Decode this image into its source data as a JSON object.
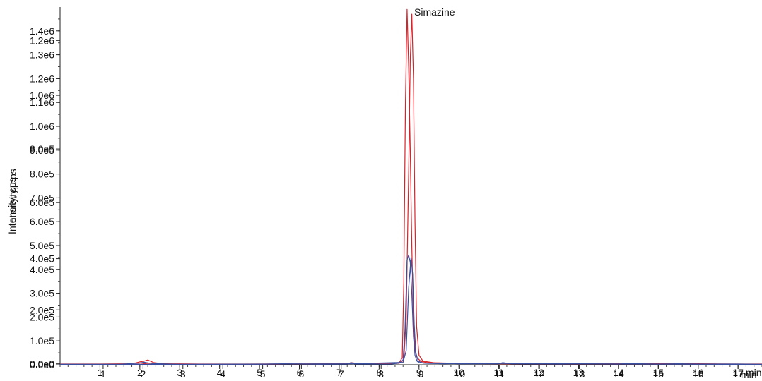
{
  "chart_data": {
    "type": "line",
    "ylabel": "Intensity, cps",
    "ylabel_overlay": "Intensity, cps",
    "xlabel": "min",
    "xlabel_overlay": "min",
    "xlim": [
      0,
      17.6
    ],
    "ylim": [
      0,
      1500000.0
    ],
    "grid": false,
    "x_ticks": [
      {
        "label": "1",
        "value": 1
      },
      {
        "label": "2",
        "value": 2
      },
      {
        "label": "3",
        "value": 3
      },
      {
        "label": "4",
        "value": 4
      },
      {
        "label": "5",
        "value": 5
      },
      {
        "label": "6",
        "value": 6
      },
      {
        "label": "7",
        "value": 7
      },
      {
        "label": "8",
        "value": 8
      },
      {
        "label": "9",
        "value": 9
      },
      {
        "label": "10",
        "value": 10
      },
      {
        "label": "11",
        "value": 11
      },
      {
        "label": "12",
        "value": 12
      },
      {
        "label": "13",
        "value": 13
      },
      {
        "label": "14",
        "value": 14
      },
      {
        "label": "15",
        "value": 15
      },
      {
        "label": "16",
        "value": 16
      },
      {
        "label": "17",
        "value": 17
      }
    ],
    "x_ticks_overlay": [
      {
        "label": "1",
        "value": 1.08
      },
      {
        "label": "2",
        "value": 2.08
      },
      {
        "label": "3",
        "value": 3.08
      },
      {
        "label": "4",
        "value": 4.08
      },
      {
        "label": "5",
        "value": 5.08
      },
      {
        "label": "6",
        "value": 6.05
      },
      {
        "label": "7",
        "value": 7.05
      },
      {
        "label": "8",
        "value": 8.05
      },
      {
        "label": "9",
        "value": 9.05
      },
      {
        "label": "10",
        "value": 10.02
      },
      {
        "label": "11",
        "value": 11.02
      },
      {
        "label": "12",
        "value": 12.02
      },
      {
        "label": "13",
        "value": 13.02
      },
      {
        "label": "14",
        "value": 14.0
      },
      {
        "label": "15",
        "value": 15.0
      },
      {
        "label": "16",
        "value": 16.0
      },
      {
        "label": "17",
        "value": 17.0
      }
    ],
    "y_ticks": [
      {
        "label": "0.0e0",
        "value": 0
      },
      {
        "label": "1.0e5",
        "value": 100000
      },
      {
        "label": "2.0e5",
        "value": 200000
      },
      {
        "label": "3.0e5",
        "value": 300000
      },
      {
        "label": "4.0e5",
        "value": 400000
      },
      {
        "label": "5.0e5",
        "value": 500000
      },
      {
        "label": "6.0e5",
        "value": 600000
      },
      {
        "label": "7.0e5",
        "value": 700000
      },
      {
        "label": "8.0e5",
        "value": 800000
      },
      {
        "label": "9.0e5",
        "value": 900000
      },
      {
        "label": "1.0e6",
        "value": 1000000
      },
      {
        "label": "1.1e6",
        "value": 1100000
      },
      {
        "label": "1.2e6",
        "value": 1200000
      },
      {
        "label": "1.3e6",
        "value": 1300000
      },
      {
        "label": "1.4e6",
        "value": 1400000
      }
    ],
    "y_ticks_overlay": [
      {
        "label": "0.0e0",
        "value": 5000
      },
      {
        "label": "2.0e5",
        "value": 230000
      },
      {
        "label": "4.0e5",
        "value": 445000
      },
      {
        "label": "6.0e5",
        "value": 680000
      },
      {
        "label": "8.0e5",
        "value": 905000
      },
      {
        "label": "1.0e6",
        "value": 1130000
      },
      {
        "label": "1.2e6",
        "value": 1360000
      }
    ],
    "annotations": [
      {
        "text": "Simazine",
        "x": 8.88,
        "y": 1480000
      }
    ],
    "series": [
      {
        "color": "#d8232a",
        "x": [
          0,
          1.0,
          1.7,
          1.9,
          2.0,
          2.1,
          2.2,
          2.35,
          2.6,
          3.5,
          4.5,
          5.5,
          5.6,
          5.8,
          6.5,
          7.2,
          7.3,
          7.5,
          8.3,
          8.5,
          8.58,
          8.62,
          8.66,
          8.7,
          8.74,
          8.78,
          8.82,
          8.86,
          8.9,
          8.95,
          9.05,
          9.2,
          9.5,
          9.7,
          10.5,
          11.0,
          11.2,
          12.0,
          13.0,
          14.0,
          14.3,
          14.5,
          15.0,
          15.5,
          16.0,
          17.0,
          17.6
        ],
        "y": [
          3000,
          3000,
          4000,
          8000,
          12000,
          15000,
          20000,
          9000,
          4000,
          3000,
          3000,
          3000,
          6000,
          3000,
          3000,
          4000,
          9000,
          4000,
          5000,
          8000,
          30000,
          350000,
          1100000,
          1490000,
          1250000,
          900000,
          500000,
          180000,
          60000,
          30000,
          14000,
          9000,
          8000,
          7000,
          6000,
          6000,
          5000,
          4000,
          4000,
          4000,
          6000,
          4000,
          4000,
          5000,
          4000,
          3000,
          3000
        ]
      },
      {
        "color": "#d8232a",
        "x": [
          0,
          2.0,
          2.2,
          3.0,
          5.5,
          8.5,
          8.62,
          8.68,
          8.74,
          8.78,
          8.82,
          8.86,
          8.9,
          8.94,
          9.0,
          9.1,
          9.4,
          10.0,
          12.0,
          14.0,
          16.0,
          17.6
        ],
        "y": [
          2000,
          2000,
          6000,
          2000,
          3000,
          6000,
          20000,
          200000,
          800000,
          1280000,
          1470000,
          1200000,
          600000,
          160000,
          40000,
          15000,
          8000,
          5000,
          3000,
          3000,
          3000,
          2000
        ]
      },
      {
        "color": "#3b4fa0",
        "x": [
          0,
          1.5,
          2.0,
          2.1,
          2.3,
          3.0,
          5.0,
          5.6,
          6.5,
          7.2,
          7.3,
          7.4,
          8.3,
          8.5,
          8.6,
          8.65,
          8.7,
          8.74,
          8.78,
          8.82,
          8.86,
          8.9,
          8.95,
          9.0,
          9.2,
          9.5,
          9.7,
          10.0,
          11.0,
          11.1,
          11.3,
          12.5,
          13.0,
          14.0,
          14.2,
          15.0,
          15.5,
          16.0,
          17.0,
          17.6
        ],
        "y": [
          2000,
          2000,
          7000,
          11000,
          5000,
          2000,
          2000,
          4000,
          2000,
          3000,
          9000,
          3000,
          3000,
          7000,
          20000,
          150000,
          440000,
          460000,
          430000,
          300000,
          120000,
          40000,
          15000,
          9000,
          6000,
          5000,
          6000,
          4000,
          4000,
          9000,
          4000,
          3000,
          4000,
          3000,
          5000,
          3000,
          4000,
          3000,
          3000,
          2000
        ]
      },
      {
        "color": "#3b4fa0",
        "x": [
          0,
          3.0,
          7.3,
          8.6,
          8.68,
          8.74,
          8.8,
          8.84,
          8.88,
          8.92,
          8.98,
          9.1,
          9.6,
          11.1,
          14.2,
          16.0,
          17.6
        ],
        "y": [
          1500,
          1500,
          4000,
          10000,
          60000,
          320000,
          450000,
          380000,
          170000,
          50000,
          15000,
          7000,
          4000,
          5000,
          3000,
          2000,
          1500
        ]
      }
    ]
  }
}
